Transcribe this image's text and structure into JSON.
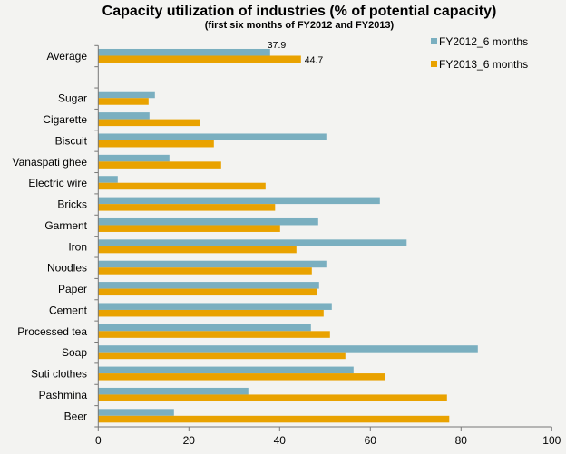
{
  "chart_data": {
    "type": "bar",
    "orientation": "horizontal",
    "title": "Capacity utilization  of industries (% of potential capacity)",
    "subtitle": "(first six months of FY2012 and FY2013)",
    "categories": [
      "Average",
      "",
      "Sugar",
      "Cigarette",
      "Biscuit",
      "Vanaspati ghee",
      "Electric wire",
      "Bricks",
      "Garment",
      "Iron",
      "Noodles",
      "Paper",
      "Cement",
      "Processed tea",
      "Soap",
      "Suti clothes",
      "Pashmina",
      "Beer"
    ],
    "series": [
      {
        "name": "FY2012_6 months",
        "color": "#7aafc0",
        "values": [
          37.9,
          null,
          12.5,
          11.3,
          50.3,
          15.7,
          4.3,
          62.1,
          48.5,
          68.0,
          50.3,
          48.7,
          51.5,
          46.9,
          83.7,
          56.3,
          33.1,
          16.7
        ]
      },
      {
        "name": "FY2013_6 months",
        "color": "#e9a200",
        "values": [
          44.7,
          null,
          11.1,
          22.5,
          25.5,
          27.1,
          36.9,
          39.0,
          40.1,
          43.7,
          47.1,
          48.3,
          49.7,
          51.1,
          54.5,
          63.3,
          76.9,
          77.4
        ]
      }
    ],
    "data_labels": {
      "FY2012_6 months_Average": "37.9",
      "FY2013_6 months_Average": "44.7"
    },
    "xlim": [
      0,
      100
    ],
    "xticks": [
      "0",
      "20",
      "40",
      "60",
      "80",
      "100"
    ],
    "grid": false,
    "legend_position": "top-right"
  }
}
